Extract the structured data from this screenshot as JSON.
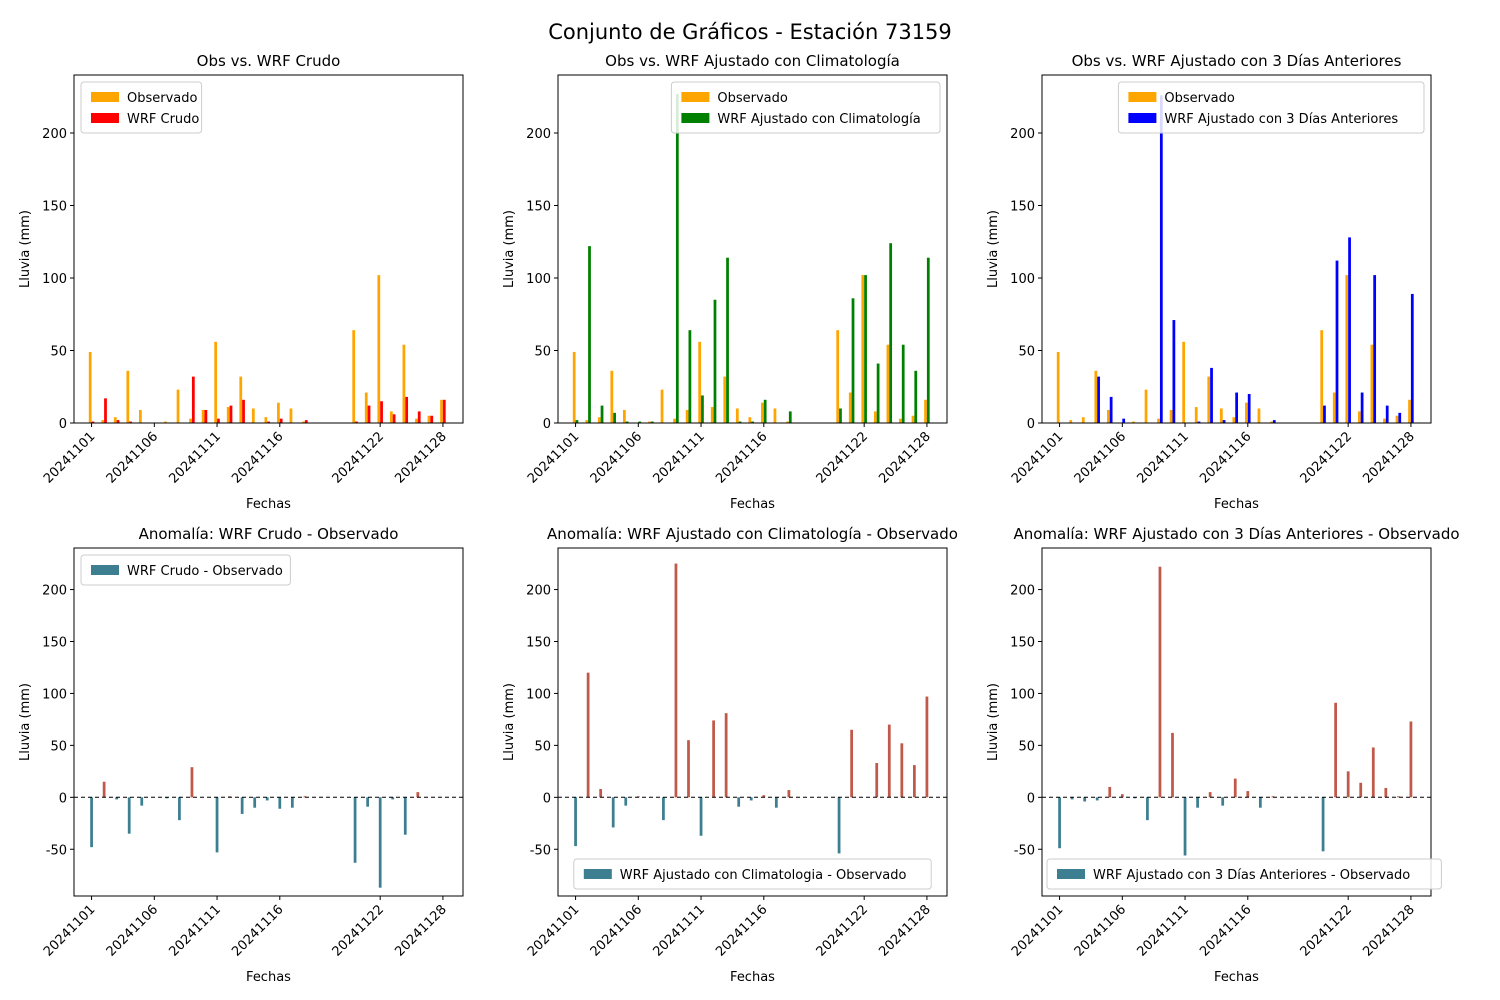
{
  "suptitle": "Conjunto de Gráficos - Estación 73159",
  "colors": {
    "observado": "#ffa500",
    "wrf_crudo": "#ff0000",
    "wrf_clim": "#008000",
    "wrf_3dias": "#0000ff",
    "anom_negative": "#3d7f91",
    "anom_positive": "#c0594a",
    "zero_line": "#000000"
  },
  "chart_data": [
    {
      "type": "bar",
      "title": "Obs vs. WRF Crudo",
      "xlabel": "Fechas",
      "ylabel": "Lluvia (mm)",
      "ylim": [
        0,
        240
      ],
      "yticks": [
        0,
        50,
        100,
        150,
        200
      ],
      "legend_position": "upper left",
      "xtick_labels": [
        "20241101",
        "20241106",
        "20241111",
        "20241116",
        "20241122",
        "20241128"
      ],
      "xtick_index": [
        0,
        5,
        10,
        15,
        20,
        25
      ],
      "x": [
        "20241101",
        "20241102",
        "20241103",
        "20241104",
        "20241105",
        "20241106",
        "20241107",
        "20241108",
        "20241109",
        "20241110",
        "20241111",
        "20241112",
        "20241113",
        "20241114",
        "20241115",
        "20241116",
        "20241117",
        "20241118",
        "20241122",
        "20241123",
        "20241124",
        "20241125",
        "20241126",
        "20241127",
        "20241128",
        "20241129"
      ],
      "series": [
        {
          "name": "Observado",
          "color_key": "observado",
          "values": [
            49,
            2,
            4,
            36,
            9,
            0,
            1,
            23,
            3,
            9,
            56,
            11,
            32,
            10,
            4,
            14,
            10,
            1,
            64,
            21,
            102,
            8,
            54,
            3,
            5,
            16
          ]
        },
        {
          "name": "WRF Crudo",
          "color_key": "wrf_crudo",
          "values": [
            1,
            17,
            2,
            1,
            0,
            0,
            0,
            0,
            32,
            9,
            3,
            12,
            16,
            0,
            1,
            3,
            0,
            2,
            1,
            12,
            15,
            6,
            18,
            8,
            5,
            16
          ]
        }
      ]
    },
    {
      "type": "bar",
      "title": "Obs vs. WRF Ajustado con Climatología",
      "xlabel": "Fechas",
      "ylabel": "Lluvia (mm)",
      "ylim": [
        0,
        240
      ],
      "yticks": [
        0,
        50,
        100,
        150,
        200
      ],
      "legend_position": "upper right",
      "xtick_labels": [
        "20241101",
        "20241106",
        "20241111",
        "20241116",
        "20241122",
        "20241128"
      ],
      "xtick_index": [
        0,
        5,
        10,
        15,
        20,
        25
      ],
      "x": [
        "20241101",
        "20241102",
        "20241103",
        "20241104",
        "20241105",
        "20241106",
        "20241107",
        "20241108",
        "20241109",
        "20241110",
        "20241111",
        "20241112",
        "20241113",
        "20241114",
        "20241115",
        "20241116",
        "20241117",
        "20241118",
        "20241122",
        "20241123",
        "20241124",
        "20241125",
        "20241126",
        "20241127",
        "20241128",
        "20241129"
      ],
      "series": [
        {
          "name": "Observado",
          "color_key": "observado",
          "values": [
            49,
            2,
            4,
            36,
            9,
            0,
            1,
            23,
            3,
            9,
            56,
            11,
            32,
            10,
            4,
            14,
            10,
            1,
            64,
            21,
            102,
            8,
            54,
            3,
            5,
            16
          ]
        },
        {
          "name": "WRF Ajustado con Climatología",
          "color_key": "wrf_clim",
          "values": [
            2,
            122,
            12,
            7,
            1,
            1,
            1,
            0,
            227,
            64,
            19,
            85,
            114,
            1,
            1,
            16,
            0,
            8,
            10,
            86,
            102,
            41,
            124,
            54,
            36,
            114
          ]
        }
      ]
    },
    {
      "type": "bar",
      "title": "Obs vs. WRF Ajustado con 3 Días Anteriores",
      "xlabel": "Fechas",
      "ylabel": "Lluvia (mm)",
      "ylim": [
        0,
        240
      ],
      "yticks": [
        0,
        50,
        100,
        150,
        200
      ],
      "legend_position": "upper right",
      "xtick_labels": [
        "20241101",
        "20241106",
        "20241111",
        "20241116",
        "20241122",
        "20241128"
      ],
      "xtick_index": [
        0,
        5,
        10,
        15,
        20,
        25
      ],
      "x": [
        "20241101",
        "20241102",
        "20241103",
        "20241104",
        "20241105",
        "20241106",
        "20241107",
        "20241108",
        "20241109",
        "20241110",
        "20241111",
        "20241112",
        "20241113",
        "20241114",
        "20241115",
        "20241116",
        "20241117",
        "20241118",
        "20241122",
        "20241123",
        "20241124",
        "20241125",
        "20241126",
        "20241127",
        "20241128",
        "20241129"
      ],
      "series": [
        {
          "name": "Observado",
          "color_key": "observado",
          "values": [
            49,
            2,
            4,
            36,
            9,
            0,
            1,
            23,
            3,
            9,
            56,
            11,
            32,
            10,
            4,
            14,
            10,
            1,
            64,
            21,
            102,
            8,
            54,
            3,
            5,
            16
          ]
        },
        {
          "name": "WRF Ajustado con 3 Días Anteriores",
          "color_key": "wrf_3dias",
          "values": [
            0,
            0,
            0,
            32,
            18,
            3,
            0,
            0,
            226,
            71,
            0,
            1,
            38,
            2,
            21,
            20,
            0,
            2,
            12,
            112,
            128,
            21,
            102,
            12,
            7,
            89
          ]
        }
      ]
    },
    {
      "type": "bar",
      "title": "Anomalía: WRF Crudo - Observado",
      "xlabel": "Fechas",
      "ylabel": "Lluvia (mm)",
      "ylim": [
        -95,
        240
      ],
      "yticks": [
        -50,
        0,
        50,
        100,
        150,
        200
      ],
      "legend_position": "upper left",
      "xtick_labels": [
        "20241101",
        "20241106",
        "20241111",
        "20241116",
        "20241122",
        "20241128"
      ],
      "xtick_index": [
        0,
        5,
        10,
        15,
        20,
        25
      ],
      "x": [
        "20241101",
        "20241102",
        "20241103",
        "20241104",
        "20241105",
        "20241106",
        "20241107",
        "20241108",
        "20241109",
        "20241110",
        "20241111",
        "20241112",
        "20241113",
        "20241114",
        "20241115",
        "20241116",
        "20241117",
        "20241118",
        "20241122",
        "20241123",
        "20241124",
        "20241125",
        "20241126",
        "20241127",
        "20241128",
        "20241129"
      ],
      "series": [
        {
          "name": "WRF Crudo - Observado",
          "values": [
            -48,
            15,
            -2,
            -35,
            -8,
            0,
            -1,
            -22,
            29,
            0,
            -53,
            1,
            -16,
            -10,
            -3,
            -11,
            -10,
            1,
            -63,
            -9,
            -87,
            -2,
            -36,
            5,
            0,
            0
          ]
        }
      ]
    },
    {
      "type": "bar",
      "title": "Anomalía: WRF Ajustado con Climatología - Observado",
      "xlabel": "Fechas",
      "ylabel": "Lluvia (mm)",
      "ylim": [
        -95,
        240
      ],
      "yticks": [
        -50,
        0,
        50,
        100,
        150,
        200
      ],
      "legend_position": "lower center",
      "xtick_labels": [
        "20241101",
        "20241106",
        "20241111",
        "20241116",
        "20241122",
        "20241128"
      ],
      "xtick_index": [
        0,
        5,
        10,
        15,
        20,
        25
      ],
      "x": [
        "20241101",
        "20241102",
        "20241103",
        "20241104",
        "20241105",
        "20241106",
        "20241107",
        "20241108",
        "20241109",
        "20241110",
        "20241111",
        "20241112",
        "20241113",
        "20241114",
        "20241115",
        "20241116",
        "20241117",
        "20241118",
        "20241122",
        "20241123",
        "20241124",
        "20241125",
        "20241126",
        "20241127",
        "20241128",
        "20241129"
      ],
      "series": [
        {
          "name": "WRF Ajustado con Climatologia - Observado",
          "values": [
            -47,
            120,
            8,
            -29,
            -8,
            1,
            0,
            -22,
            225,
            55,
            -37,
            74,
            81,
            -9,
            -3,
            2,
            -10,
            7,
            -54,
            65,
            0,
            33,
            70,
            52,
            31,
            97
          ]
        }
      ]
    },
    {
      "type": "bar",
      "title": "Anomalía: WRF Ajustado con 3 Días Anteriores - Observado",
      "xlabel": "Fechas",
      "ylabel": "Lluvia (mm)",
      "ylim": [
        -95,
        240
      ],
      "yticks": [
        -50,
        0,
        50,
        100,
        150,
        200
      ],
      "legend_position": "lower center",
      "xtick_labels": [
        "20241101",
        "20241106",
        "20241111",
        "20241116",
        "20241122",
        "20241128"
      ],
      "xtick_index": [
        0,
        5,
        10,
        15,
        20,
        25
      ],
      "x": [
        "20241101",
        "20241102",
        "20241103",
        "20241104",
        "20241105",
        "20241106",
        "20241107",
        "20241108",
        "20241109",
        "20241110",
        "20241111",
        "20241112",
        "20241113",
        "20241114",
        "20241115",
        "20241116",
        "20241117",
        "20241118",
        "20241122",
        "20241123",
        "20241124",
        "20241125",
        "20241126",
        "20241127",
        "20241128",
        "20241129"
      ],
      "series": [
        {
          "name": "WRF Ajustado con 3 Días Anteriores - Observado",
          "values": [
            -49,
            -2,
            -4,
            -3,
            10,
            3,
            -1,
            -22,
            222,
            62,
            -56,
            -10,
            5,
            -8,
            18,
            6,
            -10,
            1,
            -52,
            91,
            25,
            14,
            48,
            9,
            1,
            73
          ]
        }
      ]
    }
  ]
}
